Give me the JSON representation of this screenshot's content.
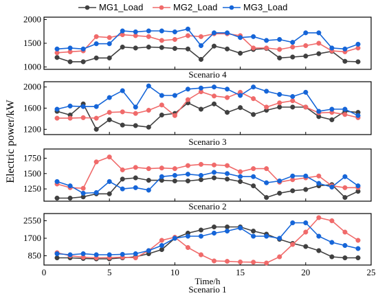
{
  "chart_data": {
    "type": "line",
    "ylabel": "Electric power/kW",
    "xlabel": "Time/h",
    "xlim": [
      0,
      25
    ],
    "x_ticks": [
      0,
      5,
      10,
      15,
      20,
      25
    ],
    "x": [
      1,
      2,
      3,
      4,
      5,
      6,
      7,
      8,
      9,
      10,
      11,
      12,
      13,
      14,
      15,
      16,
      17,
      18,
      19,
      20,
      21,
      22,
      23,
      24
    ],
    "legend": {
      "placement": "top",
      "entries": [
        {
          "name": "MG1_Load",
          "color": "#404040"
        },
        {
          "name": "MG2_Load",
          "color": "#f06a6a"
        },
        {
          "name": "MG3_Load",
          "color": "#1565d8"
        }
      ]
    },
    "panels": [
      {
        "label": "Scenario 4",
        "ylim": [
          950,
          2050
        ],
        "y_ticks": [
          1000,
          1500,
          2000
        ],
        "series": [
          {
            "name": "MG1_Load",
            "values": [
              1200,
              1110,
              1110,
              1190,
              1190,
              1420,
              1400,
              1420,
              1410,
              1390,
              1380,
              1160,
              1440,
              1380,
              1290,
              1370,
              1390,
              1190,
              1210,
              1230,
              1280,
              1330,
              1120,
              1110
            ]
          },
          {
            "name": "MG2_Load",
            "values": [
              1300,
              1320,
              1340,
              1640,
              1620,
              1680,
              1660,
              1640,
              1560,
              1580,
              1660,
              1640,
              1700,
              1700,
              1660,
              1400,
              1400,
              1370,
              1420,
              1450,
              1500,
              1340,
              1320,
              1400
            ]
          },
          {
            "name": "MG3_Load",
            "values": [
              1380,
              1400,
              1380,
              1490,
              1490,
              1760,
              1740,
              1760,
              1760,
              1740,
              1800,
              1450,
              1720,
              1720,
              1620,
              1640,
              1560,
              1580,
              1520,
              1720,
              1720,
              1400,
              1380,
              1480
            ]
          }
        ]
      },
      {
        "label": "Scenario 3",
        "ylim": [
          1100,
          2100
        ],
        "y_ticks": [
          1200,
          1600,
          2000
        ],
        "series": [
          {
            "name": "MG1_Load",
            "values": [
              1540,
              1470,
              1680,
              1200,
              1380,
              1280,
              1270,
              1240,
              1470,
              1500,
              1700,
              1580,
              1680,
              1520,
              1610,
              1480,
              1560,
              1620,
              1620,
              1620,
              1440,
              1380,
              1540,
              1520
            ]
          },
          {
            "name": "MG2_Load",
            "values": [
              1410,
              1410,
              1420,
              1410,
              1520,
              1530,
              1500,
              1560,
              1660,
              1460,
              1760,
              1910,
              1830,
              1800,
              1900,
              1780,
              1620,
              1700,
              1740,
              1620,
              1510,
              1520,
              1480,
              1420
            ]
          },
          {
            "name": "MG3_Load",
            "values": [
              1580,
              1640,
              1630,
              1630,
              1800,
              1930,
              1620,
              2020,
              1840,
              1840,
              1960,
              1980,
              2000,
              1960,
              1840,
              2000,
              1920,
              1860,
              1820,
              1900,
              1540,
              1580,
              1580,
              1460
            ]
          }
        ]
      },
      {
        "label": "Scenario 2",
        "ylim": [
          1050,
          1900
        ],
        "y_ticks": [
          1250,
          1500,
          1750
        ],
        "series": [
          {
            "name": "MG1_Load",
            "values": [
              1100,
              1100,
              1120,
              1170,
              1170,
              1410,
              1430,
              1390,
              1390,
              1380,
              1380,
              1400,
              1430,
              1410,
              1370,
              1300,
              1110,
              1180,
              1220,
              1240,
              1300,
              1320,
              1110,
              1210
            ]
          },
          {
            "name": "MG2_Load",
            "values": [
              1330,
              1270,
              1260,
              1690,
              1770,
              1560,
              1600,
              1580,
              1590,
              1580,
              1630,
              1650,
              1640,
              1630,
              1530,
              1580,
              1580,
              1360,
              1400,
              1430,
              1460,
              1300,
              1270,
              1270
            ]
          },
          {
            "name": "MG3_Load",
            "values": [
              1370,
              1300,
              1180,
              1190,
              1370,
              1250,
              1270,
              1230,
              1450,
              1470,
              1490,
              1470,
              1520,
              1500,
              1450,
              1450,
              1350,
              1380,
              1460,
              1460,
              1340,
              1280,
              1450,
              1300
            ]
          }
        ]
      },
      {
        "label": "Scenario 1",
        "ylim": [
          400,
          2900
        ],
        "y_ticks": [
          850,
          1700,
          2550
        ],
        "series": [
          {
            "name": "MG1_Load",
            "values": [
              750,
              750,
              720,
              700,
              700,
              750,
              800,
              950,
              1150,
              1700,
              1950,
              2100,
              2250,
              2250,
              2250,
              2050,
              1900,
              1650,
              1450,
              1300,
              1100,
              800,
              750,
              750
            ]
          },
          {
            "name": "MG2_Load",
            "values": [
              1000,
              850,
              780,
              750,
              760,
              780,
              750,
              1100,
              1600,
              1750,
              1250,
              900,
              600,
              580,
              550,
              540,
              500,
              800,
              1400,
              2000,
              2700,
              2550,
              2000,
              1600
            ]
          },
          {
            "name": "MG3_Load",
            "values": [
              950,
              900,
              950,
              900,
              900,
              920,
              950,
              1100,
              1350,
              1700,
              1800,
              1800,
              1950,
              2050,
              2200,
              1800,
              1800,
              1700,
              2450,
              2450,
              1800,
              1500,
              1350,
              1200
            ]
          }
        ]
      }
    ]
  }
}
